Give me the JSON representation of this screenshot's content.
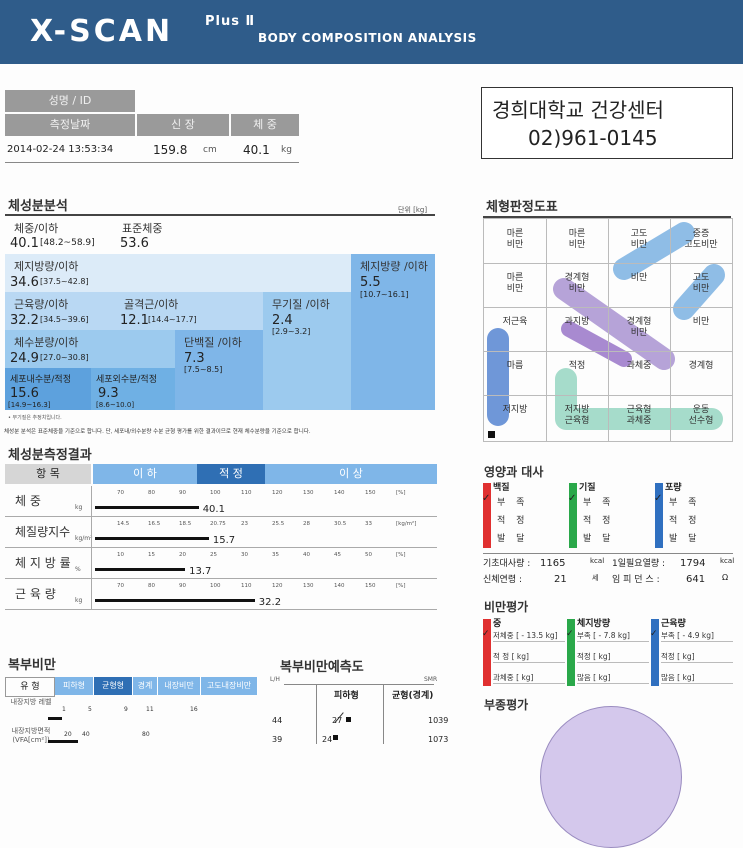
{
  "header": {
    "logo": "X-SCAN",
    "plus": "Plus Ⅱ",
    "subtitle": "BODY COMPOSITION ANALYSIS"
  },
  "info": {
    "name_label": "성명 / ID",
    "date_label": "측정날짜",
    "height_label": "신 장",
    "weight_label": "체 중",
    "date": "2014-02-24 13:53:34",
    "height": "159.8",
    "height_unit": "cm",
    "weight": "40.1",
    "weight_unit": "kg"
  },
  "center": {
    "name": "경희대학교 건강센터",
    "phone": "02)961-0145"
  },
  "composition": {
    "title": "체성분분석",
    "unit": "단위 [kg]",
    "weight_label": "체중/이하",
    "weight_value": "40.1",
    "weight_range": "[48.2~58.9]",
    "std_label": "표준체중",
    "std_value": "53.6",
    "lbm_label": "제지방량/이하",
    "lbm_value": "34.6",
    "lbm_range": "[37.5~42.8]",
    "fat_label": "체지방량 /이하",
    "fat_value": "5.5",
    "fat_range": "[10.7~16.1]",
    "muscle_label": "근육량/이하",
    "muscle_value": "32.2",
    "muscle_range": "[34.5~39.6]",
    "skel_label": "골격근/이하",
    "skel_value": "12.1",
    "skel_range": "[14.4~17.7]",
    "mineral_label": "무기질 /이하",
    "mineral_value": "2.4",
    "mineral_range": "[2.9~3.2]",
    "water_label": "체수분량/이하",
    "water_value": "24.9",
    "water_range": "[27.0~30.8]",
    "protein_label": "단백질 /이하",
    "protein_value": "7.3",
    "protein_range": "[7.5~8.5]",
    "icw_label": "세포내수분/적정",
    "icw_value": "15.6",
    "icw_range": "[14.9~16.3]",
    "ecw_label": "세포외수분/적정",
    "ecw_value": "9.3",
    "ecw_range": "[8.6~10.0]",
    "footnote": "• 무기질은 추정치입니다.",
    "note": "체성분 분석은 표준체중을 기준으로 합니다. 단, 세포내/외수분량 수분 균형 평가를 위한 결과이므로 현재 체수분량을 기준으로 합니다."
  },
  "results": {
    "title": "체성분측정결과",
    "col_item": "항 목",
    "col_low": "이 하",
    "col_normal": "적 정",
    "col_high": "이 상",
    "rows": [
      {
        "label": "체 중",
        "unit": "kg",
        "value": "40.1",
        "level": 0.305,
        "ticks": [
          "70",
          "80",
          "90",
          "100",
          "110",
          "120",
          "130",
          "140",
          "150",
          "[%]"
        ]
      },
      {
        "label": "체질량지수",
        "unit": "kg/m²",
        "value": "15.7",
        "level": 0.335,
        "ticks": [
          "14.5",
          "16.5",
          "18.5",
          "20.75",
          "23",
          "25.5",
          "28",
          "30.5",
          "33",
          "[kg/m²]"
        ]
      },
      {
        "label": "체 지 방 률",
        "unit": "%",
        "value": "13.7",
        "level": 0.265,
        "ticks": [
          "10",
          "15",
          "20",
          "25",
          "30",
          "35",
          "40",
          "45",
          "50",
          "[%]"
        ]
      },
      {
        "label": "근 육 량",
        "unit": "kg",
        "value": "32.2",
        "level": 0.47,
        "ticks": [
          "70",
          "80",
          "90",
          "100",
          "110",
          "120",
          "130",
          "140",
          "150",
          "[%]"
        ]
      }
    ]
  },
  "abdominal": {
    "title": "복부비만",
    "col_type": "유 형",
    "cols": [
      "피하형",
      "균형형",
      "경계",
      "내장비만",
      "고도내장비만"
    ],
    "row1_label": "내장지방 레벨",
    "row1_ticks": [
      "1",
      "5",
      "9",
      "11",
      "16"
    ],
    "row2_label": "내장지방면적 (VFA[cm²])",
    "row2_ticks": [
      "20",
      "40",
      "80"
    ]
  },
  "prediction": {
    "title": "복부비만예측도",
    "y_label": "L/H",
    "x_label": "SMR",
    "col1": "피하형",
    "col2": "균형(경계)",
    "y_ticks": [
      "44",
      "39"
    ],
    "points": [
      "27",
      "24"
    ],
    "right_ticks": [
      "1039",
      "1073"
    ]
  },
  "bodytype": {
    "title": "체형판정도표",
    "cells": [
      [
        "마른\n비만",
        "마른\n비만",
        "고도\n비만",
        "중증\n고도비만"
      ],
      [
        "마른\n비만",
        "경계형\n비만",
        "비만",
        "고도\n비만"
      ],
      [
        "저근육",
        "과지방",
        "경계형\n비만",
        "비만"
      ],
      [
        "마름",
        "적정",
        "과체중",
        "경계형"
      ],
      [
        "저지방",
        "저지방\n근육형",
        "근육형\n과체중",
        "운동\n선수형"
      ]
    ]
  },
  "nutrition": {
    "title": "영양과 대사",
    "groups": [
      {
        "head": "백질",
        "color": "#e03030",
        "items": [
          "부 족",
          "적 정",
          "발 달"
        ],
        "checked": 0
      },
      {
        "head": "기질",
        "color": "#2aa84a",
        "items": [
          "부 족",
          "적 정",
          "발 달"
        ],
        "checked": 0
      },
      {
        "head": "포량",
        "color": "#3070c0",
        "items": [
          "부 족",
          "적 정",
          "발 달"
        ],
        "checked": 0
      }
    ],
    "bmr_label": "기초대사량 :",
    "bmr_value": "1165",
    "bmr_unit": "kcal",
    "daily_label": "1일필요열량 :",
    "daily_value": "1794",
    "daily_unit": "kcal",
    "age_label": "신체연령 :",
    "age_value": "21",
    "age_unit": "세",
    "imp_label": "임 피 던 스 :",
    "imp_value": "641",
    "imp_unit": "Ω"
  },
  "obesity": {
    "title": "비만평가",
    "cols": [
      {
        "head": "중",
        "color": "#e03030",
        "r1": "저체중 [ - 13.5 kg]",
        "r2": "적 정 [ kg]",
        "r3": "과체중 [ kg]"
      },
      {
        "head": "체지방량",
        "color": "#2aa84a",
        "r1": "부족 [ - 7.8 kg]",
        "r2": "적정 [ kg]",
        "r3": "많음 [ kg]"
      },
      {
        "head": "근육량",
        "color": "#3070c0",
        "r1": "부족 [ - 4.9 kg]",
        "r2": "적정 [ kg]",
        "r3": "많음 [ kg]"
      }
    ]
  },
  "edema": {
    "title": "부종평가"
  }
}
